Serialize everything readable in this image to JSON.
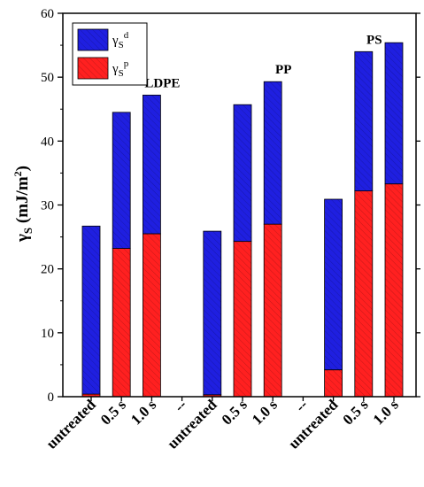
{
  "chart_data": {
    "type": "bar",
    "stacked": true,
    "categories": [
      "untreated",
      "0.5 s",
      "1.0 s",
      "--",
      "untreated",
      "0.5 s",
      "1.0 s",
      "--",
      "untreated",
      "0.5 s",
      "1.0 s"
    ],
    "series": [
      {
        "name_base": "γ",
        "name_sub": "S",
        "name_sup": "p",
        "color": "#ff2020",
        "values": [
          0.4,
          23.2,
          25.5,
          null,
          0.3,
          24.3,
          27.0,
          null,
          4.2,
          32.2,
          33.3
        ]
      },
      {
        "name_base": "γ",
        "name_sub": "S",
        "name_sup": "d",
        "color": "#1f1fe0",
        "values": [
          26.3,
          21.3,
          21.7,
          null,
          25.6,
          21.4,
          22.3,
          null,
          26.7,
          21.8,
          22.1
        ]
      }
    ],
    "totals": [
      26.7,
      44.5,
      47.2,
      null,
      25.9,
      45.7,
      49.3,
      null,
      30.9,
      54.0,
      55.4
    ],
    "group_labels": [
      {
        "text": "LDPE",
        "category_index": 2
      },
      {
        "text": "PP",
        "category_index": 6
      },
      {
        "text": "PS",
        "category_index": 9
      }
    ],
    "ylabel": {
      "base": "γ",
      "sub": "S",
      "rest": " (mJ/m",
      "sup": "2",
      "end": ")"
    },
    "xlabel": "",
    "ylim": [
      0,
      60
    ],
    "yticks": [
      "0",
      "10",
      "20",
      "30",
      "40",
      "50",
      "60"
    ],
    "legend_position": "top-left",
    "grid": false
  }
}
